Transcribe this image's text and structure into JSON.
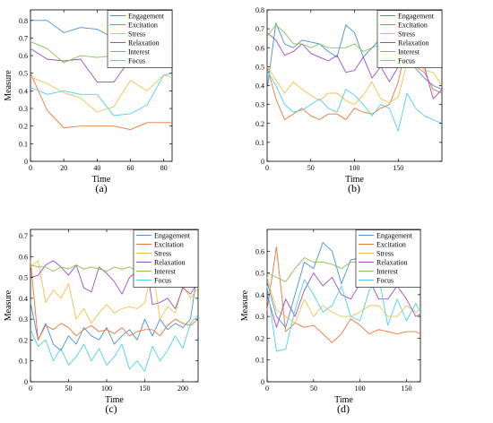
{
  "series_colors": {
    "Engagement": "#4a8fd0",
    "Excitation": "#e8763a",
    "Stress": "#f0c24d",
    "Relaxation": "#9a4ec4",
    "Interest": "#88c150",
    "Focus": "#4fd0ea"
  },
  "chart_data": [
    {
      "type": "line",
      "caption": "(a)",
      "xlabel": "Time",
      "ylabel": "Measure",
      "xlim": [
        0,
        85
      ],
      "ylim": [
        0,
        0.86
      ],
      "xticks": [
        0,
        20,
        40,
        60,
        80
      ],
      "yticks": [
        0,
        0.1,
        0.2,
        0.3,
        0.4,
        0.5,
        0.6,
        0.7,
        0.8
      ],
      "legend": "top-right",
      "x": [
        0,
        10,
        20,
        30,
        40,
        50,
        60,
        70,
        80,
        85
      ],
      "series": [
        {
          "name": "Engagement",
          "values": [
            0.8,
            0.8,
            0.73,
            0.76,
            0.75,
            0.7,
            0.66,
            0.8,
            0.8,
            0.8
          ]
        },
        {
          "name": "Excitation",
          "values": [
            0.5,
            0.29,
            0.19,
            0.2,
            0.2,
            0.2,
            0.18,
            0.22,
            0.22,
            0.22
          ]
        },
        {
          "name": "Stress",
          "values": [
            0.48,
            0.44,
            0.39,
            0.36,
            0.28,
            0.31,
            0.46,
            0.4,
            0.49,
            0.48
          ]
        },
        {
          "name": "Relaxation",
          "values": [
            0.64,
            0.58,
            0.57,
            0.58,
            0.45,
            0.45,
            0.58,
            0.6,
            0.61,
            0.62
          ]
        },
        {
          "name": "Interest",
          "values": [
            0.68,
            0.64,
            0.56,
            0.6,
            0.59,
            0.6,
            0.6,
            0.6,
            0.62,
            0.65
          ]
        },
        {
          "name": "Focus",
          "values": [
            0.42,
            0.38,
            0.4,
            0.38,
            0.38,
            0.26,
            0.27,
            0.32,
            0.49,
            0.5
          ]
        }
      ]
    },
    {
      "type": "line",
      "caption": "(b)",
      "xlabel": "Time",
      "ylabel": "",
      "xlim": [
        0,
        200
      ],
      "ylim": [
        0,
        0.8
      ],
      "xticks": [
        0,
        50,
        100,
        150
      ],
      "yticks": [
        0,
        0.1,
        0.2,
        0.3,
        0.4,
        0.5,
        0.6,
        0.7,
        0.8
      ],
      "legend": "top-right",
      "x": [
        0,
        10,
        20,
        30,
        40,
        50,
        60,
        70,
        80,
        90,
        100,
        110,
        120,
        130,
        140,
        150,
        160,
        170,
        180,
        190,
        200
      ],
      "series": [
        {
          "name": "Engagement",
          "values": [
            0.38,
            0.73,
            0.62,
            0.6,
            0.64,
            0.63,
            0.62,
            0.58,
            0.55,
            0.72,
            0.68,
            0.55,
            0.6,
            0.65,
            0.52,
            0.58,
            0.6,
            0.49,
            0.44,
            0.4,
            0.38
          ]
        },
        {
          "name": "Excitation",
          "values": [
            0.5,
            0.33,
            0.22,
            0.25,
            0.28,
            0.24,
            0.22,
            0.25,
            0.25,
            0.22,
            0.28,
            0.26,
            0.25,
            0.28,
            0.3,
            0.42,
            0.63,
            0.5,
            0.47,
            0.38,
            0.36
          ]
        },
        {
          "name": "Stress",
          "values": [
            0.5,
            0.43,
            0.36,
            0.42,
            0.38,
            0.35,
            0.32,
            0.36,
            0.36,
            0.32,
            0.3,
            0.35,
            0.42,
            0.33,
            0.31,
            0.34,
            0.52,
            0.55,
            0.48,
            0.47,
            0.4
          ]
        },
        {
          "name": "Relaxation",
          "values": [
            0.68,
            0.64,
            0.56,
            0.58,
            0.62,
            0.57,
            0.55,
            0.53,
            0.56,
            0.47,
            0.48,
            0.55,
            0.44,
            0.5,
            0.42,
            0.5,
            0.6,
            0.5,
            0.5,
            0.33,
            0.38
          ]
        },
        {
          "name": "Interest",
          "values": [
            0.66,
            0.72,
            0.68,
            0.62,
            0.62,
            0.6,
            0.62,
            0.6,
            0.6,
            0.6,
            0.62,
            0.58,
            0.6,
            0.62,
            0.58,
            0.66,
            0.72,
            0.62,
            0.6,
            0.6,
            0.62
          ]
        },
        {
          "name": "Focus",
          "values": [
            0.48,
            0.4,
            0.3,
            0.26,
            0.27,
            0.3,
            0.33,
            0.28,
            0.26,
            0.38,
            0.35,
            0.3,
            0.24,
            0.3,
            0.28,
            0.16,
            0.36,
            0.28,
            0.24,
            0.22,
            0.2
          ]
        }
      ]
    },
    {
      "type": "line",
      "caption": "(c)",
      "xlabel": "Time",
      "ylabel": "Measure",
      "xlim": [
        0,
        220
      ],
      "ylim": [
        0,
        0.73
      ],
      "xticks": [
        0,
        50,
        100,
        150,
        200
      ],
      "yticks": [
        0,
        0.1,
        0.2,
        0.3,
        0.4,
        0.5,
        0.6,
        0.7
      ],
      "legend": "top-right",
      "x": [
        0,
        10,
        20,
        30,
        40,
        50,
        60,
        70,
        80,
        90,
        100,
        110,
        120,
        130,
        140,
        150,
        160,
        170,
        180,
        190,
        200,
        210,
        220
      ],
      "series": [
        {
          "name": "Engagement",
          "values": [
            0.38,
            0.2,
            0.28,
            0.18,
            0.15,
            0.22,
            0.18,
            0.26,
            0.22,
            0.2,
            0.26,
            0.18,
            0.22,
            0.25,
            0.2,
            0.3,
            0.22,
            0.3,
            0.25,
            0.28,
            0.26,
            0.3,
            0.55
          ]
        },
        {
          "name": "Excitation",
          "values": [
            0.58,
            0.2,
            0.27,
            0.25,
            0.28,
            0.26,
            0.22,
            0.25,
            0.27,
            0.24,
            0.25,
            0.23,
            0.26,
            0.22,
            0.24,
            0.25,
            0.25,
            0.22,
            0.27,
            0.3,
            0.28,
            0.27,
            0.3
          ]
        },
        {
          "name": "Stress",
          "values": [
            0.55,
            0.58,
            0.38,
            0.44,
            0.4,
            0.47,
            0.3,
            0.35,
            0.28,
            0.33,
            0.37,
            0.33,
            0.35,
            0.36,
            0.35,
            0.38,
            0.55,
            0.3,
            0.36,
            0.33,
            0.46,
            0.4,
            0.45
          ]
        },
        {
          "name": "Relaxation",
          "values": [
            0.5,
            0.51,
            0.56,
            0.58,
            0.55,
            0.51,
            0.56,
            0.45,
            0.43,
            0.55,
            0.52,
            0.48,
            0.42,
            0.5,
            0.53,
            0.62,
            0.37,
            0.38,
            0.4,
            0.35,
            0.45,
            0.42,
            0.48
          ]
        },
        {
          "name": "Interest",
          "values": [
            0.56,
            0.55,
            0.55,
            0.53,
            0.55,
            0.54,
            0.56,
            0.54,
            0.55,
            0.54,
            0.53,
            0.55,
            0.54,
            0.55,
            0.53,
            0.55,
            0.57,
            0.52,
            0.55,
            0.56,
            0.58,
            0.6,
            0.66
          ]
        },
        {
          "name": "Focus",
          "values": [
            0.25,
            0.17,
            0.2,
            0.1,
            0.16,
            0.08,
            0.12,
            0.18,
            0.1,
            0.16,
            0.08,
            0.12,
            0.18,
            0.06,
            0.1,
            0.05,
            0.17,
            0.1,
            0.15,
            0.22,
            0.16,
            0.28,
            0.32
          ]
        }
      ]
    },
    {
      "type": "line",
      "caption": "(d)",
      "xlabel": "Time",
      "ylabel": "Measure",
      "xlim": [
        0,
        165
      ],
      "ylim": [
        0,
        0.7
      ],
      "xticks": [
        0,
        50,
        100,
        150
      ],
      "yticks": [
        0,
        0.1,
        0.2,
        0.3,
        0.4,
        0.5,
        0.6
      ],
      "legend": "top-right",
      "x": [
        0,
        10,
        20,
        30,
        40,
        50,
        60,
        70,
        80,
        90,
        100,
        110,
        120,
        130,
        140,
        150,
        160,
        165
      ],
      "series": [
        {
          "name": "Engagement",
          "values": [
            0.46,
            0.3,
            0.25,
            0.4,
            0.55,
            0.52,
            0.64,
            0.6,
            0.45,
            0.56,
            0.57,
            0.54,
            0.47,
            0.64,
            0.48,
            0.56,
            0.52,
            0.5
          ]
        },
        {
          "name": "Excitation",
          "values": [
            0.33,
            0.62,
            0.23,
            0.27,
            0.25,
            0.26,
            0.22,
            0.18,
            0.22,
            0.29,
            0.26,
            0.22,
            0.24,
            0.23,
            0.22,
            0.23,
            0.23,
            0.22
          ]
        },
        {
          "name": "Stress",
          "values": [
            0.48,
            0.33,
            0.3,
            0.27,
            0.38,
            0.3,
            0.35,
            0.32,
            0.3,
            0.3,
            0.32,
            0.35,
            0.35,
            0.3,
            0.3,
            0.35,
            0.32,
            0.33
          ]
        },
        {
          "name": "Relaxation",
          "values": [
            0.4,
            0.25,
            0.38,
            0.3,
            0.42,
            0.5,
            0.44,
            0.48,
            0.4,
            0.38,
            0.45,
            0.47,
            0.38,
            0.38,
            0.44,
            0.38,
            0.3,
            0.31
          ]
        },
        {
          "name": "Interest",
          "values": [
            0.5,
            0.48,
            0.46,
            0.52,
            0.57,
            0.55,
            0.55,
            0.54,
            0.52,
            0.55,
            0.55,
            0.55,
            0.57,
            0.55,
            0.57,
            0.55,
            0.54,
            0.53
          ]
        },
        {
          "name": "Focus",
          "values": [
            0.44,
            0.14,
            0.15,
            0.33,
            0.47,
            0.4,
            0.32,
            0.35,
            0.44,
            0.3,
            0.28,
            0.42,
            0.48,
            0.26,
            0.38,
            0.28,
            0.36,
            0.32
          ]
        }
      ]
    }
  ]
}
